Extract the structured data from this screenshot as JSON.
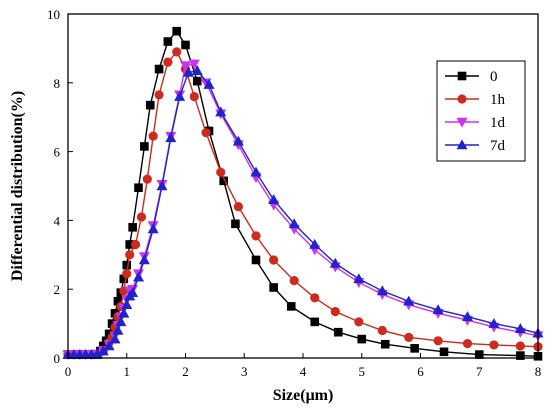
{
  "chart_data": {
    "type": "line",
    "title": "",
    "xlabel": "Size(μm)",
    "ylabel": "Differential distribution(%)",
    "xlim": [
      0,
      8
    ],
    "ylim": [
      0,
      10
    ],
    "xticks": [
      0,
      1,
      2,
      3,
      4,
      5,
      6,
      7,
      8
    ],
    "yticks": [
      0,
      2,
      4,
      6,
      8,
      10
    ],
    "grid": false,
    "legend_position": "top-right",
    "series": [
      {
        "name": "0",
        "color": "#000000",
        "marker": "square",
        "x": [
          0.0,
          0.1,
          0.2,
          0.3,
          0.4,
          0.5,
          0.55,
          0.6,
          0.65,
          0.7,
          0.75,
          0.8,
          0.85,
          0.9,
          0.95,
          1.0,
          1.05,
          1.1,
          1.2,
          1.3,
          1.4,
          1.55,
          1.7,
          1.85,
          2.0,
          2.2,
          2.4,
          2.65,
          2.85,
          3.2,
          3.5,
          3.8,
          4.2,
          4.6,
          5.0,
          5.4,
          5.9,
          6.4,
          7.0,
          7.7,
          8.0
        ],
        "y": [
          0.1,
          0.1,
          0.1,
          0.1,
          0.1,
          0.1,
          0.2,
          0.35,
          0.5,
          0.7,
          1.0,
          1.3,
          1.65,
          1.9,
          2.3,
          2.7,
          3.3,
          3.8,
          4.95,
          6.15,
          7.35,
          8.4,
          9.2,
          9.5,
          9.1,
          8.05,
          6.6,
          5.15,
          3.9,
          2.85,
          2.05,
          1.5,
          1.05,
          0.75,
          0.55,
          0.4,
          0.28,
          0.18,
          0.1,
          0.07,
          0.05
        ]
      },
      {
        "name": "1h",
        "color": "#cc2b1d",
        "marker": "circle",
        "x": [
          0.0,
          0.1,
          0.2,
          0.3,
          0.4,
          0.5,
          0.6,
          0.7,
          0.75,
          0.8,
          0.85,
          0.9,
          0.95,
          1.0,
          1.05,
          1.15,
          1.25,
          1.35,
          1.45,
          1.55,
          1.7,
          1.85,
          2.0,
          2.15,
          2.35,
          2.6,
          2.9,
          3.2,
          3.5,
          3.85,
          4.2,
          4.55,
          4.95,
          5.35,
          5.8,
          6.3,
          6.8,
          7.25,
          7.7,
          8.0
        ],
        "y": [
          0.1,
          0.1,
          0.1,
          0.1,
          0.1,
          0.12,
          0.2,
          0.45,
          0.6,
          0.9,
          1.2,
          1.5,
          1.95,
          2.45,
          3.0,
          3.3,
          4.1,
          5.2,
          6.45,
          7.65,
          8.6,
          8.9,
          8.4,
          7.6,
          6.55,
          5.4,
          4.4,
          3.55,
          2.85,
          2.25,
          1.75,
          1.35,
          1.05,
          0.8,
          0.6,
          0.5,
          0.42,
          0.38,
          0.35,
          0.33
        ]
      },
      {
        "name": "1d",
        "color": "#cc33ee",
        "marker": "triangle-down",
        "x": [
          0.0,
          0.1,
          0.2,
          0.3,
          0.4,
          0.5,
          0.6,
          0.7,
          0.8,
          0.85,
          0.9,
          0.95,
          1.0,
          1.05,
          1.1,
          1.2,
          1.3,
          1.45,
          1.6,
          1.75,
          1.9,
          2.0,
          2.15,
          2.35,
          2.6,
          2.9,
          3.2,
          3.5,
          3.85,
          4.2,
          4.55,
          4.95,
          5.35,
          5.8,
          6.3,
          6.8,
          7.25,
          7.7,
          8.0
        ],
        "y": [
          0.1,
          0.1,
          0.1,
          0.1,
          0.1,
          0.12,
          0.22,
          0.4,
          0.65,
          0.95,
          1.2,
          1.45,
          1.7,
          1.95,
          2.0,
          2.45,
          2.95,
          3.85,
          5.05,
          6.45,
          7.65,
          8.5,
          8.55,
          8.0,
          7.1,
          6.2,
          5.25,
          4.45,
          3.75,
          3.15,
          2.65,
          2.2,
          1.85,
          1.55,
          1.3,
          1.1,
          0.9,
          0.75,
          0.65
        ]
      },
      {
        "name": "7d",
        "color": "#2222cc",
        "marker": "triangle-up",
        "x": [
          0.0,
          0.1,
          0.2,
          0.3,
          0.4,
          0.5,
          0.6,
          0.7,
          0.8,
          0.85,
          0.9,
          0.95,
          1.0,
          1.05,
          1.1,
          1.2,
          1.3,
          1.45,
          1.6,
          1.75,
          1.9,
          2.05,
          2.2,
          2.4,
          2.6,
          2.9,
          3.2,
          3.5,
          3.85,
          4.2,
          4.55,
          4.95,
          5.35,
          5.8,
          6.3,
          6.8,
          7.25,
          7.7,
          8.0
        ],
        "y": [
          0.1,
          0.1,
          0.1,
          0.1,
          0.1,
          0.12,
          0.2,
          0.35,
          0.55,
          0.8,
          1.05,
          1.3,
          1.55,
          1.8,
          1.9,
          2.35,
          2.85,
          3.75,
          5.0,
          6.4,
          7.6,
          8.3,
          8.35,
          7.95,
          7.15,
          6.3,
          5.4,
          4.6,
          3.9,
          3.3,
          2.75,
          2.3,
          1.95,
          1.65,
          1.4,
          1.2,
          1.0,
          0.85,
          0.72
        ]
      }
    ]
  }
}
